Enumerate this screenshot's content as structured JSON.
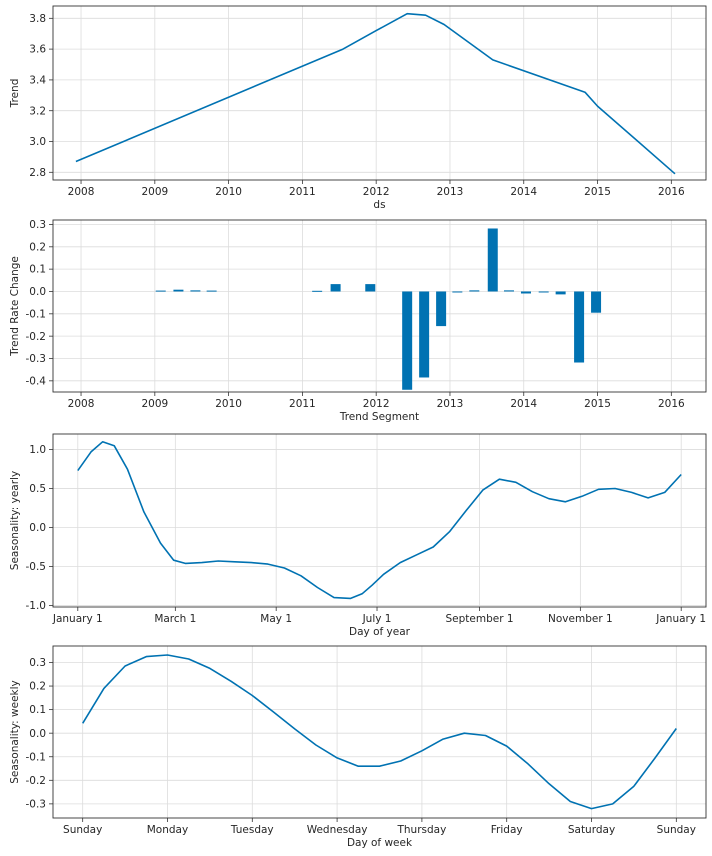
{
  "chart_data": [
    {
      "type": "line",
      "xlabel": "ds",
      "ylabel": "Trend",
      "x_ticks": [
        "2008",
        "2009",
        "2010",
        "2011",
        "2012",
        "2013",
        "2014",
        "2015",
        "2016"
      ],
      "y_ticks": [
        "2.8",
        "3.0",
        "3.2",
        "3.4",
        "3.6",
        "3.8"
      ],
      "xlim": [
        2007.62,
        2016.47
      ],
      "ylim": [
        2.75,
        3.88
      ],
      "grid": true,
      "color": "#0072b2",
      "series": [
        {
          "x": [
            2007.93,
            2011.55,
            2012.0,
            2012.42,
            2012.67,
            2012.92,
            2013.58,
            2014.83,
            2015.0,
            2016.05
          ],
          "y": [
            2.87,
            3.6,
            3.72,
            3.83,
            3.82,
            3.76,
            3.53,
            3.32,
            3.23,
            2.79
          ]
        }
      ]
    },
    {
      "type": "bar",
      "xlabel": "Trend Segment",
      "ylabel": "Trend Rate Change",
      "x_ticks": [
        "2008",
        "2009",
        "2010",
        "2011",
        "2012",
        "2013",
        "2014",
        "2015",
        "2016"
      ],
      "y_ticks": [
        "-0.4",
        "-0.3",
        "-0.2",
        "-0.1",
        "0.0",
        "0.1",
        "0.2",
        "0.3"
      ],
      "xlim": [
        2007.62,
        2016.47
      ],
      "ylim": [
        -0.45,
        0.32
      ],
      "grid": true,
      "color": "#0072b2",
      "x": [
        2009.08,
        2009.32,
        2009.55,
        2009.77,
        2011.2,
        2011.45,
        2011.92,
        2012.42,
        2012.65,
        2012.88,
        2013.1,
        2013.33,
        2013.58,
        2013.8,
        2014.03,
        2014.27,
        2014.5,
        2014.75,
        2014.98
      ],
      "values": [
        0.004,
        0.008,
        0.005,
        0.004,
        0.003,
        0.033,
        0.033,
        -0.44,
        -0.385,
        -0.155,
        -0.004,
        0.005,
        0.282,
        0.005,
        -0.009,
        -0.004,
        -0.013,
        -0.318,
        -0.095
      ]
    },
    {
      "type": "line",
      "xlabel": "Day of year",
      "ylabel": "Seasonality: yearly",
      "x_ticks": [
        "January 1",
        "March 1",
        "May 1",
        "July 1",
        "September 1",
        "November 1",
        "January 1"
      ],
      "y_ticks": [
        "-1.0",
        "-0.5",
        "0.0",
        "0.5",
        "1.0"
      ],
      "xlim": [
        -15,
        380
      ],
      "ylim": [
        -1.02,
        1.2
      ],
      "grid": true,
      "color": "#0072b2",
      "series": [
        {
          "x": [
            0,
            8,
            15,
            22,
            30,
            40,
            50,
            58,
            65,
            75,
            85,
            95,
            105,
            115,
            125,
            135,
            145,
            155,
            165,
            172,
            178,
            185,
            195,
            205,
            215,
            225,
            235,
            245,
            255,
            265,
            275,
            285,
            295,
            305,
            315,
            325,
            335,
            345,
            355,
            365
          ],
          "y": [
            0.73,
            0.97,
            1.1,
            1.05,
            0.75,
            0.2,
            -0.2,
            -0.42,
            -0.46,
            -0.45,
            -0.43,
            -0.44,
            -0.45,
            -0.47,
            -0.52,
            -0.62,
            -0.77,
            -0.9,
            -0.91,
            -0.85,
            -0.74,
            -0.6,
            -0.45,
            -0.35,
            -0.25,
            -0.05,
            0.22,
            0.48,
            0.62,
            0.58,
            0.46,
            0.37,
            0.33,
            0.4,
            0.49,
            0.5,
            0.45,
            0.38,
            0.45,
            0.68
          ]
        }
      ]
    },
    {
      "type": "line",
      "xlabel": "Day of week",
      "ylabel": "Seasonality: weekly",
      "x_ticks": [
        "Sunday",
        "Monday",
        "Tuesday",
        "Wednesday",
        "Thursday",
        "Friday",
        "Saturday",
        "Sunday"
      ],
      "y_ticks": [
        "-0.3",
        "-0.2",
        "-0.1",
        "0.0",
        "0.1",
        "0.2",
        "0.3"
      ],
      "xlim": [
        -0.35,
        7.35
      ],
      "ylim": [
        -0.36,
        0.37
      ],
      "grid": true,
      "color": "#0072b2",
      "series": [
        {
          "x": [
            0,
            0.25,
            0.5,
            0.75,
            1,
            1.25,
            1.5,
            1.75,
            2,
            2.25,
            2.5,
            2.75,
            3,
            3.25,
            3.5,
            3.75,
            4,
            4.25,
            4.5,
            4.75,
            5,
            5.25,
            5.5,
            5.75,
            6,
            6.25,
            6.5,
            6.75,
            7
          ],
          "y": [
            0.042,
            0.19,
            0.285,
            0.325,
            0.332,
            0.315,
            0.275,
            0.22,
            0.16,
            0.09,
            0.018,
            -0.05,
            -0.105,
            -0.14,
            -0.14,
            -0.118,
            -0.075,
            -0.025,
            0.0,
            -0.01,
            -0.055,
            -0.13,
            -0.215,
            -0.29,
            -0.32,
            -0.3,
            -0.225,
            -0.105,
            0.02
          ]
        }
      ]
    }
  ]
}
